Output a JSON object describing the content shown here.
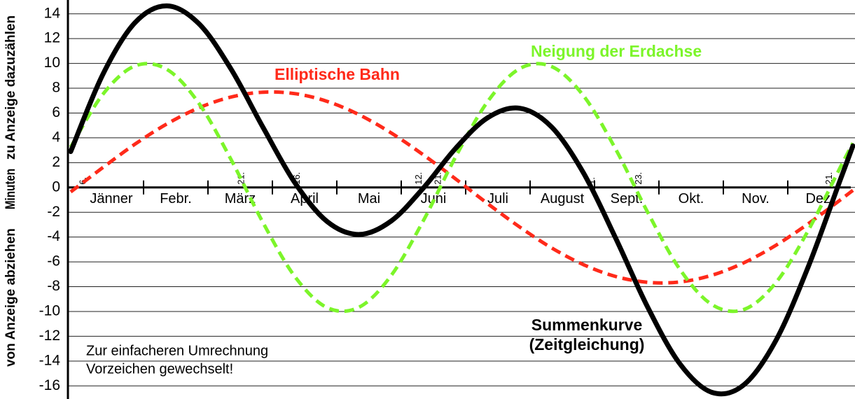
{
  "chart_data": {
    "type": "line",
    "y_label": {
      "main": "Minuten",
      "positive": "zu Anzeige dazuzählen",
      "negative": "von Anzeige abziehen"
    },
    "months": [
      "Jänner",
      "Febr.",
      "März",
      "April",
      "Mai",
      "Juni",
      "Juli",
      "August",
      "Sept.",
      "Okt.",
      "Nov.",
      "Dez."
    ],
    "x": [
      0,
      15,
      30,
      45,
      60,
      75,
      90,
      105,
      120,
      135,
      150,
      165,
      180,
      195,
      210,
      225,
      240,
      255,
      270,
      285,
      300,
      315,
      330,
      345,
      360,
      366
    ],
    "xlim": [
      -1.3,
      366
    ],
    "ylim": [
      -17,
      15
    ],
    "yticks": [
      -16,
      -14,
      -12,
      -10,
      -8,
      -6,
      -4,
      -2,
      0,
      2,
      4,
      6,
      8,
      10,
      12,
      14
    ],
    "grid": true,
    "series": [
      {
        "name": "Elliptische Bahn",
        "color": "#ff2a1a",
        "dashed": true,
        "values": [
          -0.36,
          1.6,
          3.48,
          5.12,
          6.42,
          7.29,
          7.68,
          7.56,
          6.94,
          5.86,
          4.39,
          2.63,
          0.7,
          -1.29,
          -3.18,
          -4.87,
          -6.23,
          -7.18,
          -7.65,
          -7.62,
          -7.08,
          -6.07,
          -4.66,
          -2.94,
          -1.02,
          -0.23
        ]
      },
      {
        "name": "Neigung der Erdachse",
        "color": "#7cf52a",
        "dashed": true,
        "values": [
          3.25,
          7.5,
          9.79,
          9.52,
          6.78,
          2.26,
          -2.84,
          -7.21,
          -9.69,
          -9.65,
          -7.09,
          -2.68,
          2.43,
          6.9,
          9.57,
          9.75,
          7.38,
          3.09,
          -2.01,
          -6.59,
          -9.44,
          -9.84,
          -7.67,
          -3.5,
          1.59,
          3.58
        ]
      },
      {
        "name": "Summenkurve",
        "color": "#000000",
        "dashed": false,
        "values": [
          2.89,
          9.1,
          13.27,
          14.64,
          13.2,
          9.55,
          4.84,
          0.35,
          -2.75,
          -3.79,
          -2.7,
          -0.05,
          3.13,
          5.61,
          6.39,
          4.88,
          1.15,
          -4.09,
          -9.66,
          -14.21,
          -16.52,
          -15.91,
          -12.33,
          -6.44,
          0.57,
          3.35
        ]
      }
    ],
    "series_note": "(Zeitgleichung)",
    "date_markers": [
      {
        "day": 6,
        "label": "6."
      },
      {
        "day": 80,
        "label": "21."
      },
      {
        "day": 106,
        "label": "16."
      },
      {
        "day": 163,
        "label": "12."
      },
      {
        "day": 172,
        "label": "21."
      },
      {
        "day": 244,
        "label": "1."
      },
      {
        "day": 266,
        "label": "23."
      },
      {
        "day": 355,
        "label": "21."
      }
    ],
    "note": [
      "Zur einfacheren Umrechnung",
      "Vorzeichen gewechselt!"
    ]
  }
}
